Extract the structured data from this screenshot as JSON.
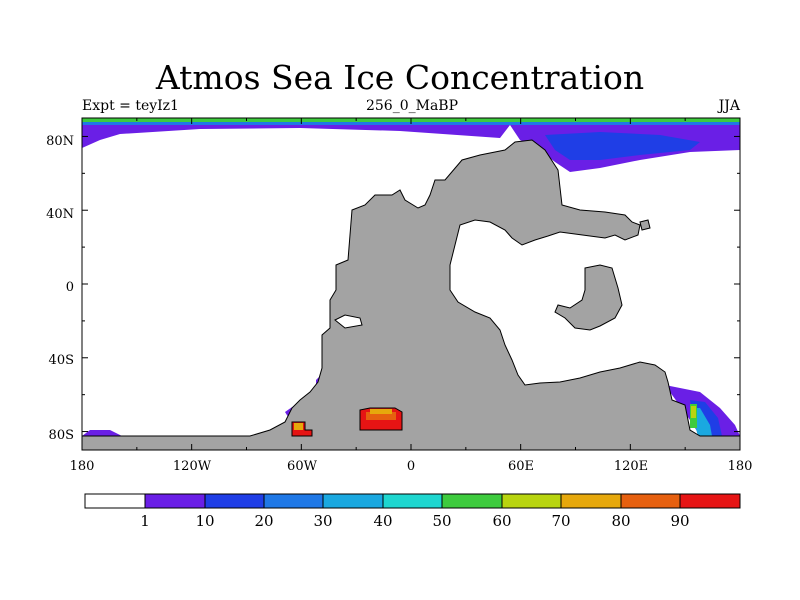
{
  "title": "Atmos Sea Ice Concentration",
  "subtitle_left": "Expt = teyIz1",
  "subtitle_center": "256_0_MaBP",
  "subtitle_right": "JJA",
  "axes": {
    "x_ticks": [
      "180",
      "120W",
      "60W",
      "0",
      "60E",
      "120E",
      "180"
    ],
    "y_ticks": [
      "80N",
      "40N",
      "0",
      "40S",
      "80S"
    ]
  },
  "colorbar": {
    "labels": [
      "1",
      "10",
      "20",
      "30",
      "40",
      "50",
      "60",
      "70",
      "80",
      "90"
    ],
    "colors": [
      "#ffffff",
      "#6a1fe6",
      "#1f3ee6",
      "#1f78e6",
      "#1aa8e0",
      "#1ed6cf",
      "#3ecb3e",
      "#b8d40f",
      "#e6a80c",
      "#e6600f",
      "#e61414"
    ]
  },
  "colors": {
    "land": "#a3a3a3",
    "ocean": "#ffffff",
    "ice_purple": "#6a1fe6",
    "ice_blue": "#1f3ee6",
    "ice_mid": "#1f78e6",
    "ice_red": "#e61414",
    "ice_orange": "#e6a80c"
  }
}
